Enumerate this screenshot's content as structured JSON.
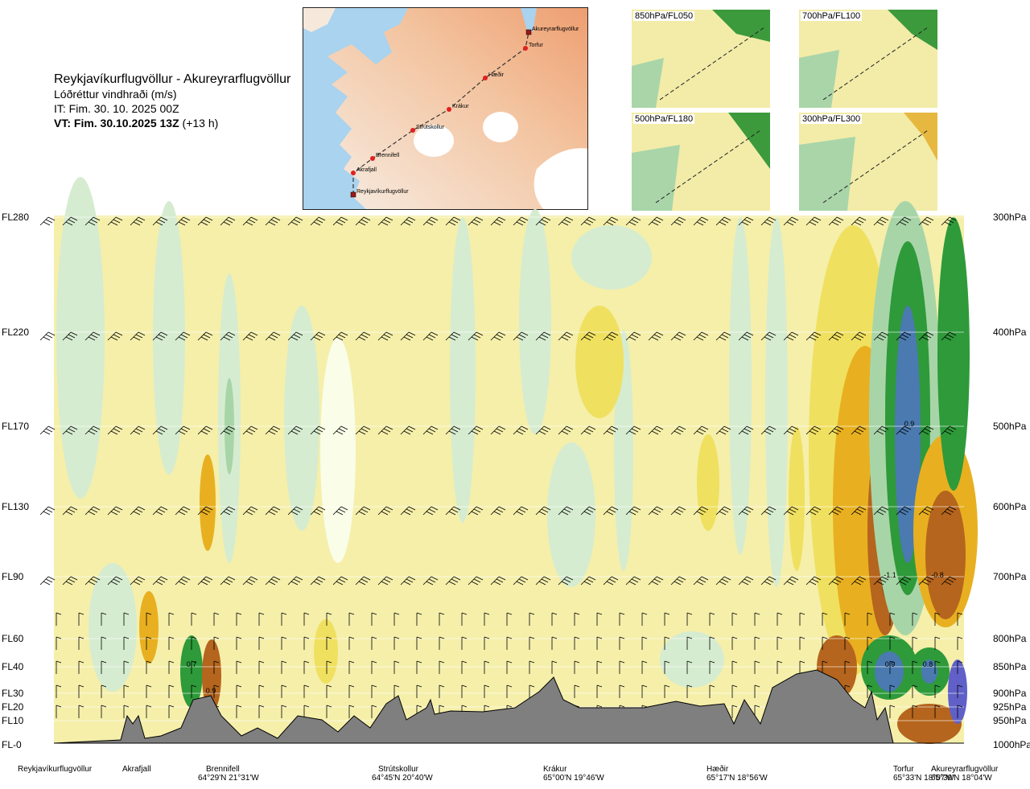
{
  "header": {
    "route_title": "Reykjavíkurflugvöllur - Akureyrarflugvöllur",
    "variable": "Lóðréttur vindhraði (m/s)",
    "issue_time": "IT: Fim. 30. 10. 2025 00Z",
    "valid_time": "VT: Fim. 30.10.2025 13Z",
    "lead_time": "(+13 h)"
  },
  "route_map": {
    "waypoints": [
      {
        "name": "Reykjavíkurflugvöllur",
        "type": "airport"
      },
      {
        "name": "Akrafjall",
        "type": "point"
      },
      {
        "name": "Brennifell",
        "type": "point"
      },
      {
        "name": "Strútskollur",
        "type": "point"
      },
      {
        "name": "Krákur",
        "type": "point"
      },
      {
        "name": "Hæðir",
        "type": "point"
      },
      {
        "name": "Torfur",
        "type": "point"
      },
      {
        "name": "Akureyrarflugvöllur",
        "type": "airport"
      }
    ],
    "colors": {
      "sea": "#a9d3ef",
      "land_low": "#f6e9dc",
      "land_high": "#f0a878",
      "glacier": "#ffffff",
      "route": "#333333",
      "point": "#e02020"
    }
  },
  "level_maps": [
    {
      "label": "850hPa/FL050"
    },
    {
      "label": "700hPa/FL100"
    },
    {
      "label": "500hPa/FL180"
    },
    {
      "label": "300hPa/FL300"
    }
  ],
  "chart_data": {
    "type": "heatmap",
    "title": "Lóðréttur vindhraði (m/s)",
    "xlabel": "",
    "ylabel": "",
    "flight_levels": [
      "FL280",
      "FL220",
      "FL170",
      "FL130",
      "FL90",
      "FL60",
      "FL40",
      "FL30",
      "FL20",
      "FL10",
      "FL-0"
    ],
    "pressure_levels": [
      "300hPa",
      "400hPa",
      "500hPa",
      "600hPa",
      "700hPa",
      "800hPa",
      "850hPa",
      "900hPa",
      "925hPa",
      "950hPa",
      "1000hPa"
    ],
    "locations": [
      {
        "name": "Reykjavíkurflugvöllur",
        "coords": ""
      },
      {
        "name": "Akrafjall",
        "coords": ""
      },
      {
        "name": "Brennifell",
        "coords": "64°29'N 21°31'W"
      },
      {
        "name": "Strútskollur",
        "coords": "64°45'N 20°40'W"
      },
      {
        "name": "Krákur",
        "coords": "65°00'N 19°46'W"
      },
      {
        "name": "Hæðir",
        "coords": "65°17'N 18°56'W"
      },
      {
        "name": "Torfur",
        "coords": "65°33'N 18°07'W"
      },
      {
        "name": "Akureyrarflugvöllur",
        "coords": "65°39'N 18°04'W"
      }
    ],
    "annotations": [
      "0.7",
      "0.9",
      "0.9",
      "-1.1",
      "-0.8",
      "0.9",
      "0.8"
    ],
    "colors": {
      "strong_down": "#7a2a0a",
      "down": "#b5651d",
      "weak_down": "#e8b020",
      "very_weak_down": "#f0e060",
      "neutral": "#f5efaa",
      "near_zero": "#fafde8",
      "very_weak_up": "#d6ecd0",
      "weak_up": "#a8d5a8",
      "up": "#2e9a3a",
      "strong_up": "#4a7ab0",
      "very_strong_up": "#6060c8",
      "terrain": "#7f7f7f"
    }
  }
}
